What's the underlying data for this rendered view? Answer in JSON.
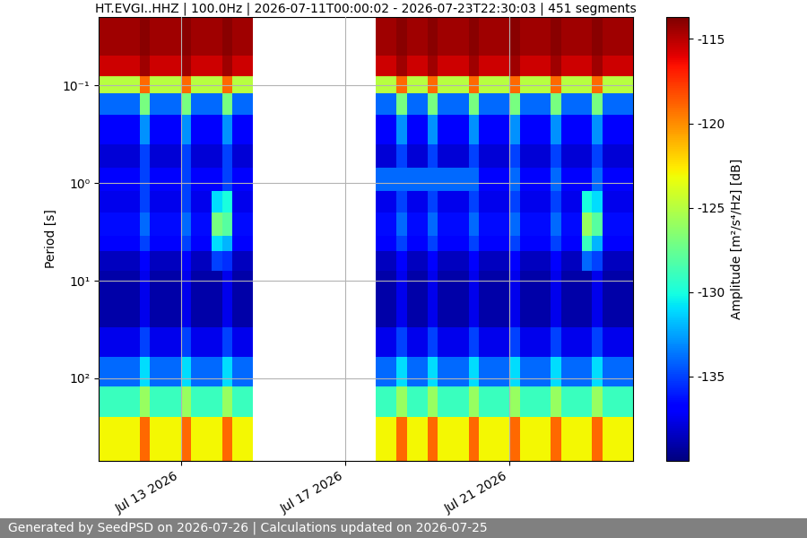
{
  "chart_data": {
    "type": "heatmap",
    "title": "HT.EVGI..HHZ | 100.0Hz | 2026-07-11T00:00:02 - 2026-07-23T22:30:03 | 451 segments",
    "y_label": "Period [s]",
    "colorbar_label": "Amplitude [m²/s⁴/Hz] [dB]",
    "footer": "Generated by SeedPSD on 2026-07-26 | Calculations updated on 2026-07-25",
    "color": "jet",
    "log": "y",
    "grid": true,
    "xlim": [
      "2026-07-11T00:00",
      "2026-07-24T00:00"
    ],
    "ylim": [
      700,
      0.02
    ],
    "xticks": [
      {
        "value": "2026-07-13T00:00",
        "label": "Jul 13 2026"
      },
      {
        "value": "2026-07-17T00:00",
        "label": "Jul 17 2026"
      },
      {
        "value": "2026-07-21T00:00",
        "label": "Jul 21 2026"
      }
    ],
    "yticks": [
      {
        "value": 0.1,
        "label": "10⁻¹"
      },
      {
        "value": 1,
        "label": "10⁰"
      },
      {
        "value": 10,
        "label": "10¹"
      },
      {
        "value": 100,
        "label": "10²"
      }
    ],
    "color_range": [
      -140,
      -113.7
    ],
    "color_ticks": [
      -115,
      -120,
      -125,
      -130,
      -135
    ],
    "x": [
      "2026-07-11T00:00",
      "2026-07-11T06:00",
      "2026-07-11T12:00",
      "2026-07-11T18:00",
      "2026-07-12T00:00",
      "2026-07-12T06:00",
      "2026-07-12T12:00",
      "2026-07-12T18:00",
      "2026-07-13T00:00",
      "2026-07-13T06:00",
      "2026-07-13T12:00",
      "2026-07-13T18:00",
      "2026-07-14T00:00",
      "2026-07-14T06:00",
      "2026-07-14T12:00",
      "2026-07-14T18:00",
      "2026-07-15T00:00",
      "2026-07-15T06:00",
      "2026-07-15T12:00",
      "2026-07-15T18:00",
      "2026-07-16T00:00",
      "2026-07-16T06:00",
      "2026-07-16T12:00",
      "2026-07-16T18:00",
      "2026-07-17T00:00",
      "2026-07-17T06:00",
      "2026-07-17T12:00",
      "2026-07-17T18:00",
      "2026-07-18T00:00",
      "2026-07-18T06:00",
      "2026-07-18T12:00",
      "2026-07-18T18:00",
      "2026-07-19T00:00",
      "2026-07-19T06:00",
      "2026-07-19T12:00",
      "2026-07-19T18:00",
      "2026-07-20T00:00",
      "2026-07-20T06:00",
      "2026-07-20T12:00",
      "2026-07-20T18:00",
      "2026-07-21T00:00",
      "2026-07-21T06:00",
      "2026-07-21T12:00",
      "2026-07-21T18:00",
      "2026-07-22T00:00",
      "2026-07-22T06:00",
      "2026-07-22T12:00",
      "2026-07-22T18:00",
      "2026-07-23T00:00",
      "2026-07-23T06:00",
      "2026-07-23T12:00",
      "2026-07-23T18:00",
      "2026-07-24T00:00"
    ],
    "y": [
      0.02,
      0.05,
      0.08,
      0.12,
      0.2,
      0.4,
      0.7,
      1.2,
      2,
      3.5,
      5,
      8,
      15,
      30,
      60,
      120,
      250,
      700
    ],
    "cells": [
      [
        -114.5,
        -114.5,
        -114.5,
        -114.5,
        -114,
        -114.5,
        -114.5,
        -114.5,
        -114,
        -114.5,
        -114.5,
        -114.5,
        -114,
        -114.5,
        -114.5,
        null,
        null,
        null,
        null,
        null,
        null,
        null,
        null,
        null,
        null,
        null,
        null,
        -114.5,
        -114.5,
        -114,
        -114.5,
        -114.5,
        -114,
        -114.5,
        -114.5,
        -114.5,
        -114,
        -114.5,
        -114.5,
        -114.5,
        -114,
        -114.5,
        -114.5,
        -114.5,
        -114,
        -114.5,
        -114.5,
        -114.5,
        -114,
        -114.5,
        -114.5,
        -114.5
      ],
      [
        -115.5,
        -115.5,
        -115.5,
        -115.5,
        -114.5,
        -115.5,
        -115.5,
        -115.5,
        -114.5,
        -115.5,
        -115.5,
        -115.5,
        -114.5,
        -115.5,
        -115.5,
        null,
        null,
        null,
        null,
        null,
        null,
        null,
        null,
        null,
        null,
        null,
        null,
        -115.5,
        -115.5,
        -114.5,
        -115.5,
        -115.5,
        -114.5,
        -115.5,
        -115.5,
        -115.5,
        -114.5,
        -115.5,
        -115.5,
        -115.5,
        -114.5,
        -115.5,
        -115.5,
        -115.5,
        -114.5,
        -115.5,
        -115.5,
        -115.5,
        -114.5,
        -115.5,
        -115.5,
        -115.5
      ],
      [
        -125,
        -125,
        -125,
        -125,
        -119,
        -125,
        -125,
        -125,
        -119,
        -125,
        -125,
        -125,
        -119,
        -125,
        -125,
        null,
        null,
        null,
        null,
        null,
        null,
        null,
        null,
        null,
        null,
        null,
        null,
        -125,
        -125,
        -119,
        -125,
        -125,
        -119,
        -125,
        -125,
        -125,
        -119,
        -125,
        -125,
        -125,
        -119,
        -125,
        -125,
        -125,
        -119,
        -125,
        -125,
        -125,
        -119,
        -125,
        -125,
        -125
      ],
      [
        -134,
        -134,
        -134,
        -134,
        -127,
        -134,
        -134,
        -134,
        -127,
        -134,
        -134,
        -134,
        -127,
        -134,
        -134,
        null,
        null,
        null,
        null,
        null,
        null,
        null,
        null,
        null,
        null,
        null,
        null,
        -134,
        -134,
        -127,
        -134,
        -134,
        -127,
        -134,
        -134,
        -134,
        -127,
        -134,
        -134,
        -134,
        -127,
        -134,
        -134,
        -134,
        -127,
        -134,
        -134,
        -134,
        -127,
        -134,
        -134,
        -134
      ],
      [
        -137,
        -137,
        -137,
        -137,
        -133,
        -137,
        -137,
        -137,
        -133,
        -137,
        -137,
        -137,
        -133,
        -137,
        -137,
        null,
        null,
        null,
        null,
        null,
        null,
        null,
        null,
        null,
        null,
        null,
        null,
        -137,
        -137,
        -133,
        -137,
        -137,
        -133,
        -137,
        -137,
        -137,
        -133,
        -137,
        -137,
        -137,
        -133,
        -137,
        -137,
        -137,
        -133,
        -137,
        -137,
        -137,
        -133,
        -137,
        -137,
        -137
      ],
      [
        -138,
        -138,
        -138,
        -138,
        -135,
        -138,
        -138,
        -138,
        -135,
        -138,
        -138,
        -138,
        -135,
        -138,
        -138,
        null,
        null,
        null,
        null,
        null,
        null,
        null,
        null,
        null,
        null,
        null,
        null,
        -138,
        -138,
        -135,
        -138,
        -138,
        -135,
        -138,
        -138,
        -138,
        -135,
        -138,
        -138,
        -138,
        -135,
        -138,
        -138,
        -138,
        -135,
        -138,
        -138,
        -138,
        -135,
        -138,
        -138,
        -138
      ],
      [
        -137,
        -137,
        -137,
        -137,
        -135,
        -137,
        -137,
        -137,
        -135,
        -137,
        -137,
        -137,
        -135,
        -137,
        -137,
        null,
        null,
        null,
        null,
        null,
        null,
        null,
        null,
        null,
        null,
        null,
        null,
        -134,
        -134,
        -134,
        -134,
        -134,
        -134,
        -134,
        -134,
        -134,
        -134,
        -137,
        -137,
        -137,
        -134,
        -137,
        -137,
        -137,
        -134,
        -137,
        -137,
        -137,
        -134,
        -137,
        -137,
        -137
      ],
      [
        -137.5,
        -137.5,
        -137.5,
        -137.5,
        -135,
        -137.5,
        -137.5,
        -137.5,
        -135,
        -137.5,
        -137.5,
        -131,
        -130,
        -137.5,
        -137.5,
        null,
        null,
        null,
        null,
        null,
        null,
        null,
        null,
        null,
        null,
        null,
        null,
        -137.5,
        -137.5,
        -135,
        -137.5,
        -137.5,
        -135,
        -137.5,
        -137.5,
        -137.5,
        -135,
        -137.5,
        -137.5,
        -137.5,
        -135,
        -137.5,
        -137.5,
        -137.5,
        -135,
        -137.5,
        -137.5,
        -130,
        -131,
        -137.5,
        -137.5,
        -137.5
      ],
      [
        -136.5,
        -136.5,
        -136.5,
        -136.5,
        -134,
        -136.5,
        -136.5,
        -136.5,
        -134,
        -136.5,
        -136.5,
        -127,
        -128,
        -136.5,
        -136.5,
        null,
        null,
        null,
        null,
        null,
        null,
        null,
        null,
        null,
        null,
        null,
        null,
        -136.5,
        -136.5,
        -134,
        -136.5,
        -136.5,
        -134,
        -136.5,
        -136.5,
        -136.5,
        -134,
        -136.5,
        -136.5,
        -136.5,
        -134,
        -136.5,
        -136.5,
        -136.5,
        -134,
        -136.5,
        -136.5,
        -126,
        -128,
        -136.5,
        -136.5,
        -136.5
      ],
      [
        -137,
        -137,
        -137,
        -137,
        -135,
        -137,
        -137,
        -137,
        -135,
        -137,
        -137,
        -131,
        -132,
        -137,
        -137,
        null,
        null,
        null,
        null,
        null,
        null,
        null,
        null,
        null,
        null,
        null,
        null,
        -137,
        -137,
        -135,
        -137,
        -137,
        -135,
        -137,
        -137,
        -137,
        -135,
        -137,
        -137,
        -137,
        -135,
        -137,
        -137,
        -137,
        -135,
        -137,
        -137,
        -129,
        -132,
        -137,
        -137,
        -137
      ],
      [
        -138.5,
        -138.5,
        -138.5,
        -138.5,
        -137,
        -138.5,
        -138.5,
        -138.5,
        -137,
        -138.5,
        -138.5,
        -135,
        -135.5,
        -138.5,
        -138.5,
        null,
        null,
        null,
        null,
        null,
        null,
        null,
        null,
        null,
        null,
        null,
        null,
        -138.5,
        -138.5,
        -137,
        -138.5,
        -138.5,
        -137,
        -138.5,
        -138.5,
        -138.5,
        -137,
        -138.5,
        -138.5,
        -138.5,
        -137,
        -138.5,
        -138.5,
        -138.5,
        -137,
        -138.5,
        -138.5,
        -134,
        -135,
        -138.5,
        -138.5,
        -138.5
      ],
      [
        -139,
        -139,
        -139,
        -139,
        -137.5,
        -139,
        -139,
        -139,
        -137.5,
        -139,
        -139,
        -139,
        -137.5,
        -139,
        -139,
        null,
        null,
        null,
        null,
        null,
        null,
        null,
        null,
        null,
        null,
        null,
        null,
        -139,
        -139,
        -137.5,
        -139,
        -139,
        -137.5,
        -139,
        -139,
        -139,
        -137.5,
        -139,
        -139,
        -139,
        -137.5,
        -139,
        -139,
        -139,
        -137.5,
        -139,
        -139,
        -139,
        -137.5,
        -139,
        -139,
        -139
      ],
      [
        -139,
        -139,
        -139,
        -139,
        -137.5,
        -139,
        -139,
        -139,
        -137.5,
        -139,
        -139,
        -139,
        -137.5,
        -139,
        -139,
        null,
        null,
        null,
        null,
        null,
        null,
        null,
        null,
        null,
        null,
        null,
        null,
        -139,
        -139,
        -137.5,
        -139,
        -139,
        -137.5,
        -139,
        -139,
        -139,
        -137.5,
        -139,
        -139,
        -139,
        -137.5,
        -139,
        -139,
        -139,
        -137.5,
        -139,
        -139,
        -139,
        -137.5,
        -139,
        -139,
        -139
      ],
      [
        -137.5,
        -137.5,
        -137.5,
        -137.5,
        -135,
        -137.5,
        -137.5,
        -137.5,
        -135,
        -137.5,
        -137.5,
        -137.5,
        -135,
        -137.5,
        -137.5,
        null,
        null,
        null,
        null,
        null,
        null,
        null,
        null,
        null,
        null,
        null,
        null,
        -137.5,
        -137.5,
        -135,
        -137.5,
        -137.5,
        -135,
        -137.5,
        -137.5,
        -137.5,
        -135,
        -137.5,
        -137.5,
        -137.5,
        -135,
        -137.5,
        -137.5,
        -137.5,
        -135,
        -137.5,
        -137.5,
        -137.5,
        -135,
        -137.5,
        -137.5,
        -137.5
      ],
      [
        -134,
        -134,
        -134,
        -134,
        -131,
        -134,
        -134,
        -134,
        -131,
        -134,
        -134,
        -134,
        -131,
        -134,
        -134,
        null,
        null,
        null,
        null,
        null,
        null,
        null,
        null,
        null,
        null,
        null,
        null,
        -134,
        -134,
        -131,
        -134,
        -134,
        -131,
        -134,
        -134,
        -134,
        -131,
        -134,
        -134,
        -134,
        -131,
        -134,
        -134,
        -134,
        -131,
        -134,
        -134,
        -134,
        -131,
        -134,
        -134,
        -134
      ],
      [
        -129,
        -129,
        -129,
        -129,
        -126,
        -129,
        -129,
        -129,
        -126,
        -129,
        -129,
        -129,
        -126,
        -129,
        -129,
        null,
        null,
        null,
        null,
        null,
        null,
        null,
        null,
        null,
        null,
        null,
        null,
        -129,
        -129,
        -126,
        -129,
        -129,
        -126,
        -129,
        -129,
        -129,
        -126,
        -129,
        -129,
        -129,
        -126,
        -129,
        -129,
        -129,
        -126,
        -129,
        -129,
        -129,
        -126,
        -129,
        -129,
        -129
      ],
      [
        -123,
        -123,
        -123,
        -123,
        -119,
        -123,
        -123,
        -123,
        -119,
        -123,
        -123,
        -123,
        -119,
        -123,
        -123,
        null,
        null,
        null,
        null,
        null,
        null,
        null,
        null,
        null,
        null,
        null,
        null,
        -123,
        -123,
        -119,
        -123,
        -123,
        -119,
        -123,
        -123,
        -123,
        -119,
        -123,
        -123,
        -123,
        -119,
        -123,
        -123,
        -123,
        -119,
        -123,
        -123,
        -123,
        -119,
        -123,
        -123,
        -123
      ]
    ]
  }
}
